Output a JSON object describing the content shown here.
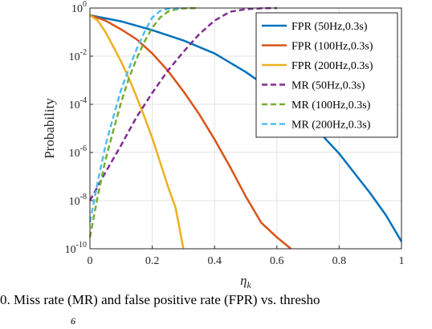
{
  "chart_data": {
    "type": "line",
    "xlabel": "η",
    "xlabel_sub": "k",
    "ylabel": "Probability",
    "xlim": [
      0,
      1
    ],
    "ylim": [
      1e-10,
      1
    ],
    "yscale": "log",
    "grid": true,
    "legend_position": "top-right",
    "x_ticks": [
      "0",
      "0.2",
      "0.4",
      "0.6",
      "0.8",
      "1"
    ],
    "y_ticks": [
      {
        "base": "10",
        "exp": "0"
      },
      {
        "base": "10",
        "exp": "-2"
      },
      {
        "base": "10",
        "exp": "-4"
      },
      {
        "base": "10",
        "exp": "-6"
      },
      {
        "base": "10",
        "exp": "-8"
      },
      {
        "base": "10",
        "exp": "-10"
      }
    ],
    "series": [
      {
        "name": "FPR (50Hz,0.3s)",
        "color": "#0072BD",
        "dash": false,
        "points": [
          [
            0,
            0.5
          ],
          [
            0.1,
            0.28
          ],
          [
            0.2,
            0.12
          ],
          [
            0.3,
            0.045
          ],
          [
            0.4,
            0.013
          ],
          [
            0.5,
            0.0022
          ],
          [
            0.6,
            0.00028
          ],
          [
            0.7,
            2.2e-05
          ],
          [
            0.8,
            9e-07
          ],
          [
            0.9,
            2e-08
          ],
          [
            0.95,
            2.5e-09
          ],
          [
            1.0,
            2e-10
          ]
        ]
      },
      {
        "name": "FPR (100Hz,0.3s)",
        "color": "#D95319",
        "dash": false,
        "points": [
          [
            0,
            0.5
          ],
          [
            0.05,
            0.3
          ],
          [
            0.1,
            0.13
          ],
          [
            0.15,
            0.05
          ],
          [
            0.2,
            0.013
          ],
          [
            0.25,
            0.0025
          ],
          [
            0.3,
            0.00035
          ],
          [
            0.35,
            4e-05
          ],
          [
            0.4,
            3.5e-06
          ],
          [
            0.45,
            2.5e-07
          ],
          [
            0.5,
            1.5e-08
          ],
          [
            0.55,
            1.2e-09
          ],
          [
            0.6,
            3e-10
          ],
          [
            0.645,
            1e-10
          ]
        ]
      },
      {
        "name": "FPR (200Hz,0.3s)",
        "color": "#EDB120",
        "dash": false,
        "points": [
          [
            0,
            0.5
          ],
          [
            0.025,
            0.3
          ],
          [
            0.05,
            0.1
          ],
          [
            0.075,
            0.025
          ],
          [
            0.1,
            0.006
          ],
          [
            0.125,
            0.0012
          ],
          [
            0.15,
            0.0002
          ],
          [
            0.175,
            3e-05
          ],
          [
            0.2,
            4e-06
          ],
          [
            0.225,
            4e-07
          ],
          [
            0.25,
            4e-08
          ],
          [
            0.275,
            5e-09
          ],
          [
            0.3,
            1e-10
          ]
        ]
      },
      {
        "name": "MR (50Hz,0.3s)",
        "color": "#7E2F8E",
        "dash": true,
        "points": [
          [
            0,
            1e-08
          ],
          [
            0.05,
            1.5e-07
          ],
          [
            0.1,
            2e-06
          ],
          [
            0.15,
            3e-05
          ],
          [
            0.2,
            0.0003
          ],
          [
            0.25,
            0.0025
          ],
          [
            0.3,
            0.015
          ],
          [
            0.35,
            0.08
          ],
          [
            0.4,
            0.3
          ],
          [
            0.45,
            0.7
          ],
          [
            0.5,
            0.9
          ],
          [
            0.55,
            0.97
          ],
          [
            0.6,
            1.0
          ]
        ]
      },
      {
        "name": "MR (100Hz,0.3s)",
        "color": "#77AC30",
        "dash": true,
        "points": [
          [
            0,
            3e-10
          ],
          [
            0.025,
            1.5e-08
          ],
          [
            0.05,
            5e-07
          ],
          [
            0.075,
            8e-06
          ],
          [
            0.1,
            0.00012
          ],
          [
            0.125,
            0.0012
          ],
          [
            0.15,
            0.008
          ],
          [
            0.175,
            0.04
          ],
          [
            0.2,
            0.15
          ],
          [
            0.225,
            0.4
          ],
          [
            0.25,
            0.7
          ],
          [
            0.275,
            0.88
          ],
          [
            0.3,
            0.96
          ],
          [
            0.35,
            1.0
          ]
        ]
      },
      {
        "name": "MR (200Hz,0.3s)",
        "color": "#4DBEEE",
        "dash": true,
        "points": [
          [
            0,
            1.3e-09
          ],
          [
            0.025,
            6e-08
          ],
          [
            0.05,
            2e-06
          ],
          [
            0.075,
            3e-05
          ],
          [
            0.1,
            0.0004
          ],
          [
            0.125,
            0.003
          ],
          [
            0.15,
            0.02
          ],
          [
            0.175,
            0.1
          ],
          [
            0.2,
            0.4
          ],
          [
            0.225,
            0.75
          ],
          [
            0.25,
            0.92
          ],
          [
            0.3,
            1.0
          ]
        ]
      }
    ]
  },
  "caption": {
    "text": "0.   Miss rate (MR) and false positive rate (FPR) vs. thresho",
    "subtext": "6"
  }
}
